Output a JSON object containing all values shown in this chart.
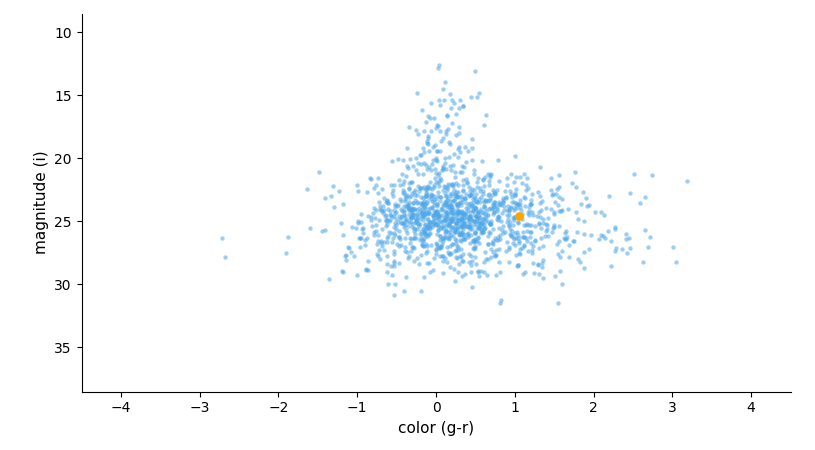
{
  "xlabel": "color (g-r)",
  "ylabel": "magnitude (i)",
  "xlim": [
    -4.5,
    4.5
  ],
  "ylim": [
    38.5,
    8.5
  ],
  "xticks": [
    -4,
    -3,
    -2,
    -1,
    0,
    1,
    2,
    3,
    4
  ],
  "yticks": [
    10,
    15,
    20,
    25,
    30,
    35
  ],
  "point_color": "#4da6e8",
  "highlight_color": "#FFA500",
  "highlight_x": 1.05,
  "highlight_y": 24.6,
  "seed": 42,
  "scatter_alpha": 0.55,
  "point_size": 10,
  "highlight_size": 40
}
